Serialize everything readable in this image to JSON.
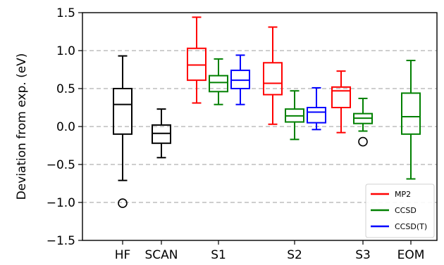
{
  "chart_data": {
    "type": "box",
    "ylabel": "Deviation from exp. (eV)",
    "xlabel": "",
    "ylim": [
      -1.5,
      1.5
    ],
    "yticks": [
      -1.5,
      -1.0,
      -0.5,
      0.0,
      0.5,
      1.0,
      1.5
    ],
    "ytick_labels": [
      "−1.5",
      "−1.0",
      "−0.5",
      "0.0",
      "0.5",
      "1.0",
      "1.5"
    ],
    "grid": "horizontal dashed",
    "categories": [
      "HF",
      "SCAN",
      "S1",
      "S2",
      "S3",
      "EOM"
    ],
    "legend": {
      "placement": "lower-right",
      "entries": [
        {
          "name": "MP2",
          "color": "#ff0000"
        },
        {
          "name": "CCSD",
          "color": "#008000"
        },
        {
          "name": "CCSD(T)",
          "color": "#0000ff"
        }
      ]
    },
    "boxes": [
      {
        "category": "HF",
        "slot": "center",
        "color": "#000000",
        "whislo": -0.71,
        "q1": -0.1,
        "med": 0.29,
        "q3": 0.5,
        "whishi": 0.93,
        "fliers": [
          -1.01
        ]
      },
      {
        "category": "SCAN",
        "slot": "center",
        "color": "#000000",
        "whislo": -0.41,
        "q1": -0.22,
        "med": -0.09,
        "q3": 0.02,
        "whishi": 0.23,
        "fliers": []
      },
      {
        "category": "S1",
        "slot": "left",
        "series": "MP2",
        "color": "#ff0000",
        "whislo": 0.31,
        "q1": 0.61,
        "med": 0.81,
        "q3": 1.03,
        "whishi": 1.44,
        "fliers": []
      },
      {
        "category": "S1",
        "slot": "center",
        "series": "CCSD",
        "color": "#008000",
        "whislo": 0.29,
        "q1": 0.46,
        "med": 0.58,
        "q3": 0.67,
        "whishi": 0.89,
        "fliers": []
      },
      {
        "category": "S1",
        "slot": "right",
        "series": "CCSD(T)",
        "color": "#0000ff",
        "whislo": 0.29,
        "q1": 0.5,
        "med": 0.61,
        "q3": 0.74,
        "whishi": 0.94,
        "fliers": []
      },
      {
        "category": "S2",
        "slot": "left",
        "series": "MP2",
        "color": "#ff0000",
        "whislo": 0.03,
        "q1": 0.42,
        "med": 0.57,
        "q3": 0.84,
        "whishi": 1.31,
        "fliers": []
      },
      {
        "category": "S2",
        "slot": "center",
        "series": "CCSD",
        "color": "#008000",
        "whislo": -0.17,
        "q1": 0.06,
        "med": 0.14,
        "q3": 0.23,
        "whishi": 0.47,
        "fliers": []
      },
      {
        "category": "S2",
        "slot": "right",
        "series": "CCSD(T)",
        "color": "#0000ff",
        "whislo": -0.04,
        "q1": 0.05,
        "med": 0.19,
        "q3": 0.25,
        "whishi": 0.51,
        "fliers": []
      },
      {
        "category": "S3",
        "slot": "left",
        "series": "MP2",
        "color": "#ff0000",
        "whislo": -0.08,
        "q1": 0.25,
        "med": 0.47,
        "q3": 0.52,
        "whishi": 0.73,
        "fliers": []
      },
      {
        "category": "S3",
        "slot": "center",
        "series": "CCSD",
        "color": "#008000",
        "whislo": -0.06,
        "q1": 0.04,
        "med": 0.11,
        "q3": 0.17,
        "whishi": 0.37,
        "fliers": [
          -0.2
        ]
      },
      {
        "category": "EOM",
        "slot": "center",
        "series": "CCSD",
        "color": "#008000",
        "whislo": -0.69,
        "q1": -0.1,
        "med": 0.13,
        "q3": 0.44,
        "whishi": 0.87,
        "fliers": []
      }
    ]
  }
}
